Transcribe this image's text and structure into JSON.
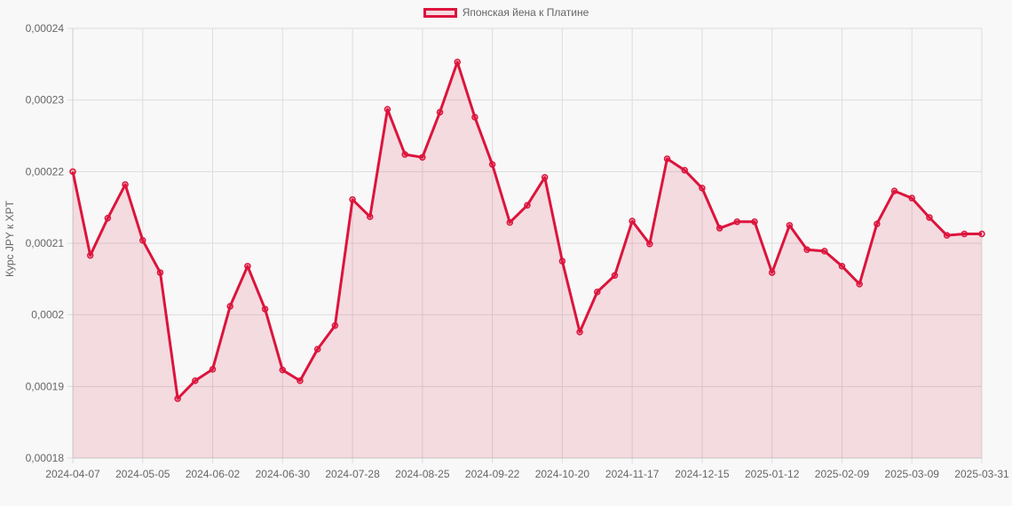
{
  "legend": {
    "label": "Японская йена к Платине",
    "color": "#dc143c"
  },
  "chart_data": {
    "type": "area",
    "title": "",
    "xlabel": "",
    "ylabel": "Курс JPY к XPT",
    "ylim": [
      0.00018,
      0.00024
    ],
    "yticks": [
      "0,00018",
      "0,00019",
      "0,0002",
      "0,00021",
      "0,00022",
      "0,00023",
      "0,00024"
    ],
    "ytick_values": [
      0.00018,
      0.00019,
      0.0002,
      0.00021,
      0.00022,
      0.00023,
      0.00024
    ],
    "xticks": [
      "2024-04-07",
      "2024-05-05",
      "2024-06-02",
      "2024-06-30",
      "2024-07-28",
      "2024-08-25",
      "2024-09-22",
      "2024-10-20",
      "2024-11-17",
      "2024-12-15",
      "2025-01-12",
      "2025-02-09",
      "2025-03-09",
      "2025-03-31"
    ],
    "grid": true,
    "legend_position": "top",
    "series": [
      {
        "name": "Японская йена к Платине",
        "color": "#dc143c",
        "fill": "rgba(220,20,60,0.15)",
        "values": [
          0.00022,
          0.0002083,
          0.0002135,
          0.0002182,
          0.0002104,
          0.0002059,
          0.0001883,
          0.0001908,
          0.0001924,
          0.0002012,
          0.0002068,
          0.0002008,
          0.0001923,
          0.0001908,
          0.0001952,
          0.0001985,
          0.0002161,
          0.0002137,
          0.0002287,
          0.0002224,
          0.000222,
          0.0002283,
          0.0002353,
          0.0002276,
          0.000221,
          0.0002129,
          0.0002153,
          0.0002192,
          0.0002075,
          0.0001976,
          0.0002032,
          0.0002055,
          0.0002131,
          0.0002099,
          0.0002218,
          0.0002202,
          0.0002177,
          0.0002121,
          0.000213,
          0.000213,
          0.0002059,
          0.0002125,
          0.0002091,
          0.0002089,
          0.0002068,
          0.0002043,
          0.0002127,
          0.0002173,
          0.0002163,
          0.0002136,
          0.0002111,
          0.0002113,
          0.0002113
        ]
      }
    ]
  }
}
